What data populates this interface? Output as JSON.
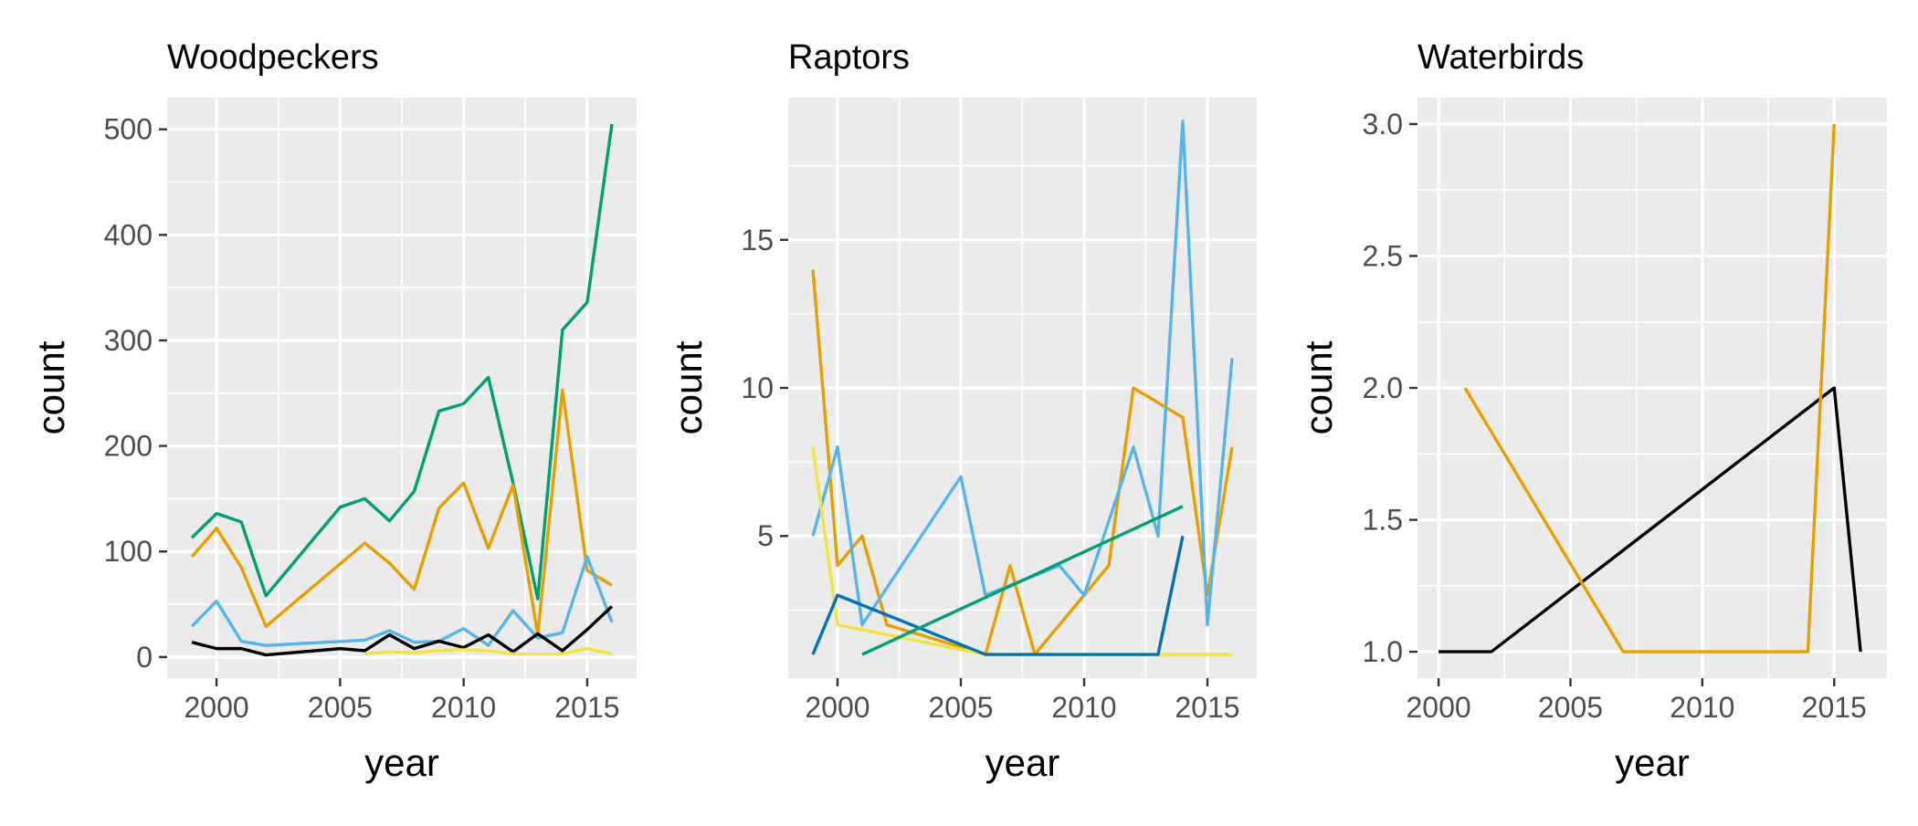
{
  "chart_data": [
    {
      "type": "line",
      "title": "Woodpeckers",
      "xlabel": "year",
      "ylabel": "count",
      "xlim": [
        1998,
        2017
      ],
      "ylim": [
        -20,
        530
      ],
      "xticks": [
        2000,
        2005,
        2010,
        2015
      ],
      "yticks": [
        0,
        100,
        200,
        300,
        400,
        500
      ],
      "grid": true,
      "series": [
        {
          "color": "#009E73",
          "x": [
            1999,
            2000,
            2001,
            2002,
            2005,
            2006,
            2007,
            2008,
            2009,
            2010,
            2011,
            2012,
            2013,
            2014,
            2015,
            2016
          ],
          "y": [
            113,
            136,
            128,
            58,
            142,
            150,
            129,
            157,
            233,
            240,
            265,
            165,
            55,
            310,
            336,
            505
          ]
        },
        {
          "color": "#E69F00",
          "x": [
            1999,
            2000,
            2001,
            2002,
            2006,
            2007,
            2008,
            2009,
            2010,
            2011,
            2012,
            2013,
            2014,
            2015,
            2016
          ],
          "y": [
            95,
            122,
            85,
            29,
            108,
            89,
            64,
            141,
            165,
            103,
            163,
            21,
            253,
            82,
            68
          ]
        },
        {
          "color": "#56B4E9",
          "x": [
            1999,
            2000,
            2001,
            2002,
            2006,
            2007,
            2008,
            2009,
            2010,
            2011,
            2012,
            2013,
            2014,
            2015,
            2016
          ],
          "y": [
            29,
            53,
            15,
            11,
            16,
            25,
            14,
            15,
            27,
            11,
            44,
            18,
            23,
            95,
            33
          ]
        },
        {
          "color": "#000000",
          "x": [
            1999,
            2000,
            2001,
            2002,
            2005,
            2006,
            2007,
            2008,
            2009,
            2010,
            2011,
            2012,
            2013,
            2014,
            2015,
            2016
          ],
          "y": [
            14,
            8,
            8,
            2,
            8,
            6,
            21,
            8,
            15,
            9,
            21,
            5,
            22,
            6,
            26,
            48
          ]
        },
        {
          "color": "#F0E442",
          "x": [
            2006,
            2007,
            2008,
            2009,
            2010,
            2011,
            2012,
            2013,
            2014,
            2015,
            2016
          ],
          "y": [
            3,
            5,
            4,
            6,
            7,
            6,
            3,
            3,
            3,
            8,
            3
          ]
        }
      ]
    },
    {
      "type": "line",
      "title": "Raptors",
      "xlabel": "year",
      "ylabel": "count",
      "xlim": [
        1998,
        2017
      ],
      "ylim": [
        0.2,
        19.8
      ],
      "xticks": [
        2000,
        2005,
        2010,
        2015
      ],
      "yticks": [
        5,
        10,
        15
      ],
      "grid": true,
      "series": [
        {
          "color": "#E69F00",
          "x": [
            1999,
            2000,
            2001,
            2002,
            2006,
            2007,
            2008,
            2009,
            2010,
            2011,
            2012,
            2014,
            2015,
            2016
          ],
          "y": [
            14,
            4,
            5,
            2,
            1,
            4,
            1,
            2,
            3,
            4,
            10,
            9,
            3,
            8
          ]
        },
        {
          "color": "#56B4E9",
          "x": [
            1999,
            2000,
            2001,
            2005,
            2006,
            2009,
            2010,
            2012,
            2013,
            2014,
            2015,
            2016
          ],
          "y": [
            5,
            8,
            2,
            7,
            3,
            4,
            3,
            8,
            5,
            19,
            2,
            11
          ]
        },
        {
          "color": "#F0E442",
          "x": [
            1999,
            2000,
            2006,
            2016
          ],
          "y": [
            8,
            2,
            1,
            1
          ]
        },
        {
          "color": "#0072B2",
          "x": [
            1999,
            2000,
            2006,
            2013,
            2014
          ],
          "y": [
            1,
            3,
            1,
            1,
            5
          ]
        },
        {
          "color": "#009E73",
          "x": [
            2001,
            2014
          ],
          "y": [
            1,
            6
          ]
        }
      ]
    },
    {
      "type": "line",
      "title": "Waterbirds",
      "xlabel": "year",
      "ylabel": "count",
      "xlim": [
        1999.2,
        2017.0
      ],
      "ylim": [
        0.9,
        3.1
      ],
      "xticks": [
        2000,
        2005,
        2010,
        2015
      ],
      "yticks": [
        1.0,
        1.5,
        2.0,
        2.5,
        3.0
      ],
      "grid": true,
      "series": [
        {
          "color": "#000000",
          "x": [
            2000,
            2002,
            2015,
            2016
          ],
          "y": [
            1,
            1,
            2,
            1
          ]
        },
        {
          "color": "#E69F00",
          "x": [
            2001,
            2007,
            2014,
            2015
          ],
          "y": [
            2,
            1,
            1,
            3
          ]
        }
      ]
    }
  ]
}
